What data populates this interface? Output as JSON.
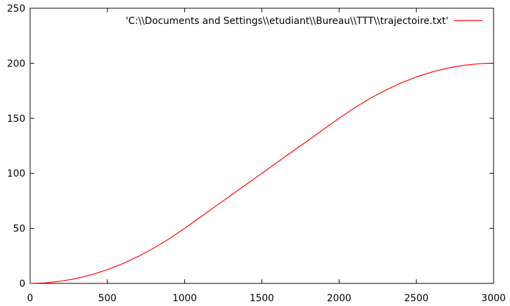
{
  "chart_data": {
    "type": "line",
    "title": "",
    "xlabel": "",
    "ylabel": "",
    "xlim": [
      0,
      3000
    ],
    "ylim": [
      0,
      250
    ],
    "x_ticks": [
      0,
      500,
      1000,
      1500,
      2000,
      2500,
      3000
    ],
    "y_ticks": [
      0,
      50,
      100,
      150,
      200,
      250
    ],
    "x_tick_labels": [
      "0",
      "500",
      "1000",
      "1500",
      "2000",
      "2500",
      "3000"
    ],
    "y_tick_labels": [
      "0",
      "50",
      "100",
      "150",
      "200",
      "250"
    ],
    "grid": false,
    "legend_position": "top-right",
    "series": [
      {
        "name": "'C:\\\\Documents and Settings\\\\etudiant\\\\Bureau\\\\TTT\\\\trajectoire.txt'",
        "color": "#ff0000",
        "x": [
          0,
          100,
          200,
          300,
          400,
          500,
          600,
          700,
          800,
          900,
          1000,
          1100,
          1200,
          1300,
          1400,
          1500,
          1600,
          1700,
          1800,
          1900,
          2000,
          2100,
          2200,
          2300,
          2400,
          2500,
          2600,
          2700,
          2800,
          2900,
          2975
        ],
        "y": [
          0,
          0.5,
          2,
          4.5,
          8,
          12.5,
          18,
          24.5,
          32,
          40.5,
          50,
          60,
          70,
          80,
          90,
          100,
          110,
          120,
          130,
          140,
          150,
          159.5,
          168,
          175.5,
          182,
          187.5,
          192,
          195.5,
          198,
          199.5,
          200
        ]
      }
    ]
  }
}
